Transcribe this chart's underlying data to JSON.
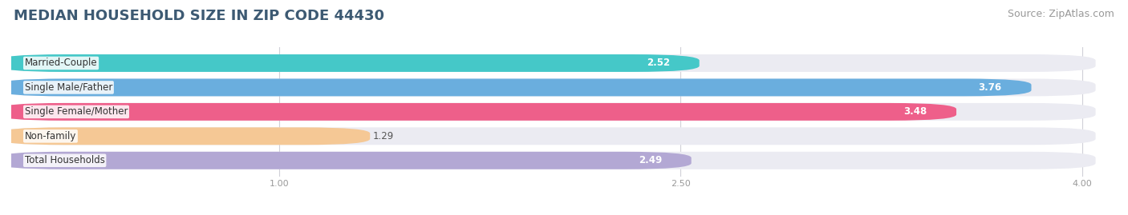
{
  "title": "MEDIAN HOUSEHOLD SIZE IN ZIP CODE 44430",
  "source": "Source: ZipAtlas.com",
  "categories": [
    "Married-Couple",
    "Single Male/Father",
    "Single Female/Mother",
    "Non-family",
    "Total Households"
  ],
  "values": [
    2.52,
    3.76,
    3.48,
    1.29,
    2.49
  ],
  "bar_colors": [
    "#45c8c8",
    "#6aaede",
    "#ee5f8a",
    "#f5c895",
    "#b3a8d4"
  ],
  "bar_bg_color": "#ebebf2",
  "xlim_data": [
    0.0,
    4.2
  ],
  "xaxis_min": 0.0,
  "xaxis_max": 4.0,
  "xticks": [
    1.0,
    2.5,
    4.0
  ],
  "xticklabels": [
    "1.00",
    "2.50",
    "4.00"
  ],
  "title_fontsize": 13,
  "source_fontsize": 9,
  "label_fontsize": 8.5,
  "value_fontsize": 8.5,
  "bar_height": 0.62,
  "background_color": "#ffffff",
  "grid_color": "#d0d0d8"
}
